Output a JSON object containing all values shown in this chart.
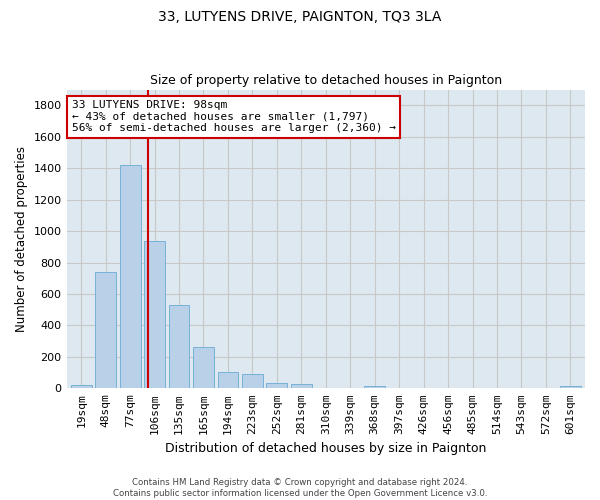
{
  "title": "33, LUTYENS DRIVE, PAIGNTON, TQ3 3LA",
  "subtitle": "Size of property relative to detached houses in Paignton",
  "xlabel": "Distribution of detached houses by size in Paignton",
  "ylabel": "Number of detached properties",
  "categories": [
    "19sqm",
    "48sqm",
    "77sqm",
    "106sqm",
    "135sqm",
    "165sqm",
    "194sqm",
    "223sqm",
    "252sqm",
    "281sqm",
    "310sqm",
    "339sqm",
    "368sqm",
    "397sqm",
    "426sqm",
    "456sqm",
    "485sqm",
    "514sqm",
    "543sqm",
    "572sqm",
    "601sqm"
  ],
  "values": [
    20,
    740,
    1420,
    935,
    530,
    265,
    105,
    92,
    35,
    27,
    0,
    0,
    14,
    0,
    0,
    0,
    0,
    0,
    0,
    0,
    14
  ],
  "bar_color": "#b8d0e8",
  "bar_edge_color": "#6aaad4",
  "vline_color": "#cc0000",
  "annotation_line1": "33 LUTYENS DRIVE: 98sqm",
  "annotation_line2": "← 43% of detached houses are smaller (1,797)",
  "annotation_line3": "56% of semi-detached houses are larger (2,360) →",
  "annotation_box_color": "#cc0000",
  "ylim": [
    0,
    1900
  ],
  "yticks": [
    0,
    200,
    400,
    600,
    800,
    1000,
    1200,
    1400,
    1600,
    1800
  ],
  "grid_color": "#c8c8c8",
  "bg_axes": "#dde8f0",
  "background_color": "#ffffff",
  "footer": "Contains HM Land Registry data © Crown copyright and database right 2024.\nContains public sector information licensed under the Open Government Licence v3.0.",
  "title_fontsize": 10,
  "subtitle_fontsize": 9,
  "xlabel_fontsize": 9,
  "ylabel_fontsize": 8.5,
  "tick_fontsize": 8,
  "annot_fontsize": 8
}
